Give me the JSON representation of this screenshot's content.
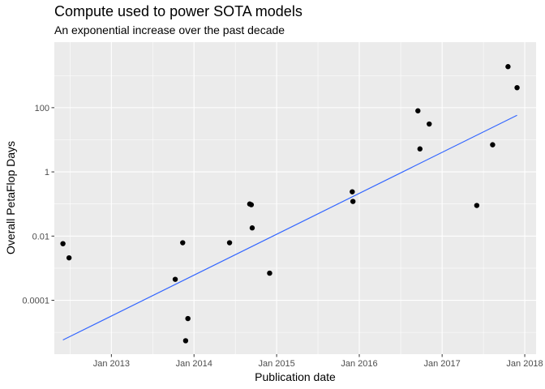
{
  "chart_data": {
    "type": "scatter",
    "title": "Compute used to power SOTA models",
    "subtitle": "An exponential increase over the past decade",
    "xlabel": "Publication date",
    "ylabel": "Overall PetaFlop Days",
    "y_scale": "log10",
    "xlim": [
      "2012-04-24",
      "2018-02-20"
    ],
    "ylim": [
      2.1e-06,
      11000
    ],
    "grid": true,
    "x_ticks": [
      {
        "date": "2013-01-01",
        "label": "Jan 2013"
      },
      {
        "date": "2014-01-01",
        "label": "Jan 2014"
      },
      {
        "date": "2015-01-01",
        "label": "Jan 2015"
      },
      {
        "date": "2016-01-01",
        "label": "Jan 2016"
      },
      {
        "date": "2017-01-01",
        "label": "Jan 2017"
      },
      {
        "date": "2018-01-01",
        "label": "Jan 2018"
      }
    ],
    "y_ticks": [
      {
        "value": 0.0001,
        "label": "0.0001"
      },
      {
        "value": 0.01,
        "label": "0.01"
      },
      {
        "value": 1,
        "label": "1"
      },
      {
        "value": 100,
        "label": "100"
      }
    ],
    "points": [
      {
        "x": "2012-06-01",
        "y": 0.0058
      },
      {
        "x": "2012-06-28",
        "y": 0.0021
      },
      {
        "x": "2013-10-10",
        "y": 0.00045
      },
      {
        "x": "2013-11-12",
        "y": 0.0062
      },
      {
        "x": "2013-11-25",
        "y": 5.5e-06
      },
      {
        "x": "2013-12-05",
        "y": 2.7e-05
      },
      {
        "x": "2014-06-07",
        "y": 0.0062
      },
      {
        "x": "2014-09-04",
        "y": 0.1
      },
      {
        "x": "2014-09-11",
        "y": 0.095
      },
      {
        "x": "2014-09-15",
        "y": 0.018
      },
      {
        "x": "2014-12-01",
        "y": 0.0007
      },
      {
        "x": "2015-12-01",
        "y": 0.24
      },
      {
        "x": "2015-12-04",
        "y": 0.12
      },
      {
        "x": "2016-09-16",
        "y": 80
      },
      {
        "x": "2016-09-25",
        "y": 5.2
      },
      {
        "x": "2016-11-05",
        "y": 31
      },
      {
        "x": "2017-06-03",
        "y": 0.09
      },
      {
        "x": "2017-08-12",
        "y": 7
      },
      {
        "x": "2017-10-19",
        "y": 1900
      },
      {
        "x": "2017-11-28",
        "y": 420
      }
    ],
    "trend_line": {
      "color": "#3366FF",
      "from": {
        "x": "2012-06-01",
        "y": 5.8e-06
      },
      "to": {
        "x": "2017-11-28",
        "y": 58
      }
    },
    "colors": {
      "panel": "#EBEBEB",
      "grid": "#FFFFFF",
      "points": "#000000",
      "trend": "#3366FF"
    }
  }
}
